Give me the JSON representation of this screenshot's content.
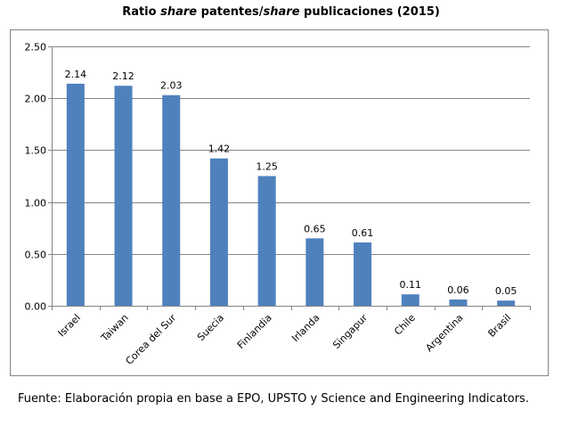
{
  "chart_data": {
    "type": "bar",
    "title": {
      "prefix": "Ratio ",
      "italic1": "share",
      "middle": " patentes/",
      "italic2": "share",
      "suffix": " publicaciones (2015)"
    },
    "categories": [
      "Israel",
      "Taiwan",
      "Corea del Sur",
      "Suecia",
      "Finlandia",
      "Irlanda",
      "Singapur",
      "Chile",
      "Argentina",
      "Brasil"
    ],
    "values": [
      2.14,
      2.12,
      2.03,
      1.42,
      1.25,
      0.65,
      0.61,
      0.11,
      0.06,
      0.05
    ],
    "value_labels": [
      "2.14",
      "2.12",
      "2.03",
      "1.42",
      "1.25",
      "0.65",
      "0.61",
      "0.11",
      "0.06",
      "0.05"
    ],
    "y_ticks": [
      0,
      0.5,
      1.0,
      1.5,
      2.0,
      2.5
    ],
    "y_tick_labels": [
      "0.00",
      "0.50",
      "1.00",
      "1.50",
      "2.00",
      "2.50"
    ],
    "ylim": [
      0,
      2.5
    ],
    "xlabel": "",
    "ylabel": "",
    "grid": true,
    "legend": "none",
    "bar_color": "#4F81BD",
    "grid_color": "#868686"
  },
  "source_note": "Fuente: Elaboración propia en base a EPO, UPSTO y Science and Engineering Indicators."
}
